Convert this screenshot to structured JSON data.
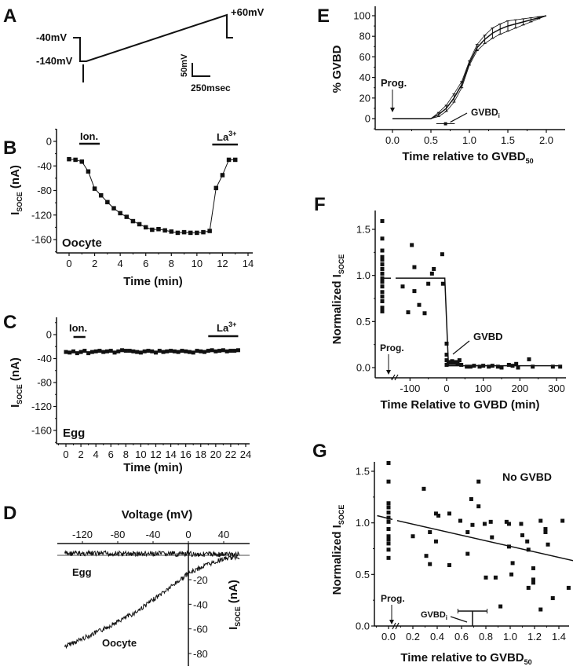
{
  "figure": {
    "panel_letters": [
      "A",
      "B",
      "C",
      "D",
      "E",
      "F",
      "G"
    ]
  },
  "chart_data": [
    {
      "panel": "A",
      "type": "line",
      "title": "Voltage protocol",
      "labels": {
        "hold": "-40mV",
        "start": "-140mV",
        "end": "+60mV"
      },
      "scale_bar": {
        "voltage": "50mV",
        "time": "250msec"
      },
      "protocol": [
        {
          "t": -100,
          "v": -40
        },
        {
          "t": 0,
          "v": -40
        },
        {
          "t": 0,
          "v": -140
        },
        {
          "t": 50,
          "v": -140
        },
        {
          "t": 1250,
          "v": 60
        },
        {
          "t": 1250,
          "v": -40
        },
        {
          "t": 1320,
          "v": -40
        }
      ]
    },
    {
      "panel": "B",
      "type": "line",
      "xlabel": "Time (min)",
      "ylabel": "I",
      "ylabel_sub": "SOCE",
      "ylabel_suffix": " (nA)",
      "xlim": [
        -0.5,
        14
      ],
      "ylim": [
        -180,
        15
      ],
      "xticks": [
        0,
        2,
        4,
        6,
        8,
        10,
        12,
        14
      ],
      "yticks": [
        0,
        -40,
        -80,
        -120,
        -160
      ],
      "annotations": {
        "ion": "Ion.",
        "la": "La",
        "la_sup": "3+",
        "cell": "Oocyte"
      },
      "bars": {
        "ion": [
          0.8,
          2.4
        ],
        "la": [
          11.2,
          13.2
        ]
      },
      "x": [
        0,
        0.5,
        1,
        1.5,
        2,
        2.5,
        3,
        3.5,
        4,
        4.5,
        5,
        5.5,
        6,
        6.5,
        7,
        7.5,
        8,
        8.5,
        9,
        9.5,
        10,
        10.5,
        11,
        11.5,
        12,
        12.5,
        13
      ],
      "y": [
        -29,
        -30,
        -33,
        -49,
        -77,
        -88,
        -99,
        -109,
        -117,
        -123,
        -130,
        -135,
        -140,
        -144,
        -143,
        -145,
        -147,
        -149,
        -148,
        -149,
        -149,
        -148,
        -146,
        -76,
        -55,
        -30,
        -30
      ]
    },
    {
      "panel": "C",
      "type": "line",
      "xlabel": "Time (min)",
      "ylabel": "I",
      "ylabel_sub": "SOCE",
      "ylabel_suffix": " (nA)",
      "xlim": [
        -0.5,
        24
      ],
      "ylim": [
        -175,
        15
      ],
      "xticks": [
        0,
        2,
        4,
        6,
        8,
        10,
        12,
        14,
        16,
        18,
        20,
        22,
        24
      ],
      "yticks": [
        0,
        -40,
        -80,
        -120,
        -160
      ],
      "annotations": {
        "ion": "Ion.",
        "la": "La",
        "la_sup": "3+",
        "cell": "Egg"
      },
      "bars": {
        "ion": [
          1.0,
          2.6
        ],
        "la": [
          19.0,
          23.0
        ]
      },
      "x": [
        0,
        0.5,
        1,
        1.5,
        2,
        2.5,
        3,
        3.5,
        4,
        4.5,
        5,
        5.5,
        6,
        6.5,
        7,
        7.5,
        8,
        8.5,
        9,
        9.5,
        10,
        10.5,
        11,
        11.5,
        12,
        12.5,
        13,
        13.5,
        14,
        14.5,
        15,
        15.5,
        16,
        16.5,
        17,
        17.5,
        18,
        18.5,
        19,
        19.5,
        20,
        20.5,
        21,
        21.5,
        22,
        22.5,
        23
      ],
      "y": [
        -29,
        -30,
        -28,
        -31,
        -29,
        -27,
        -31,
        -29,
        -28,
        -27,
        -29,
        -28,
        -27,
        -30,
        -28,
        -26,
        -27,
        -27,
        -28,
        -29,
        -30,
        -28,
        -27,
        -28,
        -30,
        -27,
        -29,
        -28,
        -27,
        -28,
        -29,
        -27,
        -28,
        -29,
        -30,
        -27,
        -28,
        -29,
        -27,
        -26,
        -28,
        -27,
        -26,
        -28,
        -27,
        -27,
        -26
      ]
    },
    {
      "panel": "D",
      "type": "line",
      "xlabel": "Voltage (mV)",
      "ylabel": "I",
      "ylabel_sub": "SOCE",
      "ylabel_suffix": " (nA)",
      "xlim": [
        -150,
        70
      ],
      "ylim": [
        -85,
        5
      ],
      "xticks": [
        -120,
        -80,
        -40,
        0,
        40
      ],
      "yticks": [
        -20,
        -40,
        -60,
        -80
      ],
      "series": [
        {
          "name": "Egg",
          "x": [
            -140,
            58
          ],
          "y": [
            -2,
            -1
          ]
        },
        {
          "name": "Oocyte",
          "x": [
            -140,
            -100,
            -60,
            -20,
            0,
            20,
            40,
            58
          ],
          "y": [
            -75,
            -62,
            -47,
            -26,
            -15,
            -8,
            -3,
            -1
          ]
        }
      ]
    },
    {
      "panel": "E",
      "type": "line",
      "xlabel": "Time relative to GVBD",
      "xlabel_sub": "50",
      "ylabel": "% GVBD",
      "xlim": [
        -0.25,
        2.25
      ],
      "ylim": [
        -10,
        110
      ],
      "xticks": [
        0.0,
        0.5,
        1.0,
        1.5,
        2.0
      ],
      "yticks": [
        0,
        20,
        40,
        60,
        80,
        100
      ],
      "annotations": {
        "prog": "Prog.",
        "gvbdi": "GVBD",
        "gvbdi_sub": "i"
      },
      "gvbdi_point": {
        "x": 0.69,
        "y": -5,
        "xerr": 0.12
      },
      "x": [
        0,
        0.5,
        0.6,
        0.7,
        0.8,
        0.9,
        1.0,
        1.1,
        1.2,
        1.3,
        1.4,
        1.5,
        1.6,
        1.7,
        1.8,
        1.9,
        2.0
      ],
      "y": [
        0,
        0,
        4,
        10,
        20,
        33,
        54,
        69,
        77,
        83,
        87,
        90,
        92,
        94,
        96,
        98,
        100
      ],
      "err": [
        0,
        0,
        2,
        3,
        4,
        3,
        2,
        3,
        4,
        5,
        5,
        5,
        4,
        3,
        2,
        1,
        0
      ]
    },
    {
      "panel": "F",
      "type": "scatter",
      "xlabel": "Time Relative to GVBD (min)",
      "ylabel": "Normalized I",
      "ylabel_sub": "SOCE",
      "xlim": [
        -200,
        350
      ],
      "ylim": [
        -0.1,
        1.7
      ],
      "xticks": [
        -100,
        0,
        100,
        200,
        300
      ],
      "yticks": [
        0.0,
        0.5,
        1.0,
        1.5
      ],
      "annotations": {
        "prog": "Prog.",
        "gvbd": "GVBD"
      },
      "fit": {
        "x": [
          -185,
          -5,
          5,
          310
        ],
        "y": [
          0.97,
          0.97,
          0.02,
          0.02
        ]
      },
      "prog_x": -180,
      "points": [
        [
          -180,
          1.59
        ],
        [
          -180,
          1.4
        ],
        [
          -180,
          1.27
        ],
        [
          -180,
          1.2
        ],
        [
          -180,
          1.17
        ],
        [
          -180,
          1.12
        ],
        [
          -180,
          1.07
        ],
        [
          -180,
          1.02
        ],
        [
          -180,
          0.97
        ],
        [
          -180,
          0.93
        ],
        [
          -180,
          0.88
        ],
        [
          -180,
          0.82
        ],
        [
          -180,
          0.77
        ],
        [
          -180,
          0.72
        ],
        [
          -180,
          0.65
        ],
        [
          -180,
          0.61
        ],
        [
          -95,
          1.33
        ],
        [
          -88,
          1.09
        ],
        [
          -35,
          1.07
        ],
        [
          -40,
          1.02
        ],
        [
          -12,
          1.23
        ],
        [
          -120,
          0.88
        ],
        [
          -88,
          0.83
        ],
        [
          -50,
          0.91
        ],
        [
          -10,
          0.91
        ],
        [
          -75,
          0.68
        ],
        [
          -105,
          0.6
        ],
        [
          -60,
          0.59
        ],
        [
          0,
          0.26
        ],
        [
          0,
          0.14
        ],
        [
          0,
          0.08
        ],
        [
          0,
          0.03
        ],
        [
          5,
          0.06
        ],
        [
          10,
          0.05
        ],
        [
          15,
          0.07
        ],
        [
          20,
          0.05
        ],
        [
          25,
          0.06
        ],
        [
          30,
          0.04
        ],
        [
          35,
          0.08
        ],
        [
          40,
          0.03
        ],
        [
          55,
          0.01
        ],
        [
          65,
          0.01
        ],
        [
          75,
          0.02
        ],
        [
          90,
          0.01
        ],
        [
          100,
          0.02
        ],
        [
          115,
          0.01
        ],
        [
          125,
          0.02
        ],
        [
          140,
          0.01
        ],
        [
          150,
          0.0
        ],
        [
          170,
          0.03
        ],
        [
          180,
          0.02
        ],
        [
          190,
          0.04
        ],
        [
          195,
          0.0
        ],
        [
          225,
          0.09
        ],
        [
          235,
          0.01
        ],
        [
          290,
          0.01
        ],
        [
          310,
          0.01
        ]
      ]
    },
    {
      "panel": "G",
      "type": "scatter",
      "xlabel": "Time relative to GVBD",
      "xlabel_sub": "50",
      "ylabel": "Normalized I",
      "ylabel_sub": "SOCE",
      "xlim": [
        -0.1,
        1.5
      ],
      "ylim": [
        0,
        1.6
      ],
      "xticks": [
        0.0,
        0.2,
        0.4,
        0.6,
        0.8,
        1.0,
        1.2,
        1.4
      ],
      "yticks": [
        0.0,
        0.5,
        1.0,
        1.5
      ],
      "annotations": {
        "prog": "Prog.",
        "gvbdi": "GVBD",
        "gvbdi_sub": "i",
        "title": "No GVBD"
      },
      "gvbdi_marker": {
        "x": 0.69,
        "xerr": 0.12,
        "y": 0.15
      },
      "fit": {
        "x": [
          -0.1,
          1.5
        ],
        "y": [
          1.07,
          0.62
        ]
      },
      "points": [
        [
          0,
          1.58
        ],
        [
          0,
          1.4
        ],
        [
          0,
          1.19
        ],
        [
          0,
          1.15
        ],
        [
          0,
          1.1
        ],
        [
          0,
          1.05
        ],
        [
          0,
          1.01
        ],
        [
          0,
          0.94
        ],
        [
          0,
          0.87
        ],
        [
          0,
          0.84
        ],
        [
          0,
          0.8
        ],
        [
          0,
          0.74
        ],
        [
          0,
          0.66
        ],
        [
          0.29,
          1.33
        ],
        [
          0.2,
          0.87
        ],
        [
          0.34,
          0.91
        ],
        [
          0.31,
          0.68
        ],
        [
          0.34,
          0.6
        ],
        [
          0.39,
          1.09
        ],
        [
          0.41,
          1.07
        ],
        [
          0.39,
          0.82
        ],
        [
          0.5,
          1.09
        ],
        [
          0.5,
          0.59
        ],
        [
          0.59,
          1.02
        ],
        [
          0.65,
          0.91
        ],
        [
          0.65,
          0.7
        ],
        [
          0.68,
          1.23
        ],
        [
          0.69,
          0.98
        ],
        [
          0.74,
          1.4
        ],
        [
          0.74,
          1.16
        ],
        [
          0.79,
          0.99
        ],
        [
          0.8,
          0.47
        ],
        [
          0.84,
          1.01
        ],
        [
          0.85,
          0.86
        ],
        [
          0.88,
          0.47
        ],
        [
          0.92,
          0.19
        ],
        [
          0.97,
          1.01
        ],
        [
          0.99,
          0.99
        ],
        [
          0.99,
          0.77
        ],
        [
          1.02,
          0.61
        ],
        [
          1.01,
          0.5
        ],
        [
          1.09,
          0.99
        ],
        [
          1.1,
          0.88
        ],
        [
          1.14,
          0.82
        ],
        [
          1.15,
          0.74
        ],
        [
          1.15,
          0.37
        ],
        [
          1.19,
          0.56
        ],
        [
          1.19,
          0.45
        ],
        [
          1.19,
          0.42
        ],
        [
          1.25,
          1.02
        ],
        [
          1.25,
          0.16
        ],
        [
          1.29,
          0.94
        ],
        [
          1.29,
          0.91
        ],
        [
          1.31,
          0.79
        ],
        [
          1.35,
          0.27
        ],
        [
          1.43,
          1.02
        ],
        [
          1.48,
          0.37
        ]
      ]
    }
  ]
}
